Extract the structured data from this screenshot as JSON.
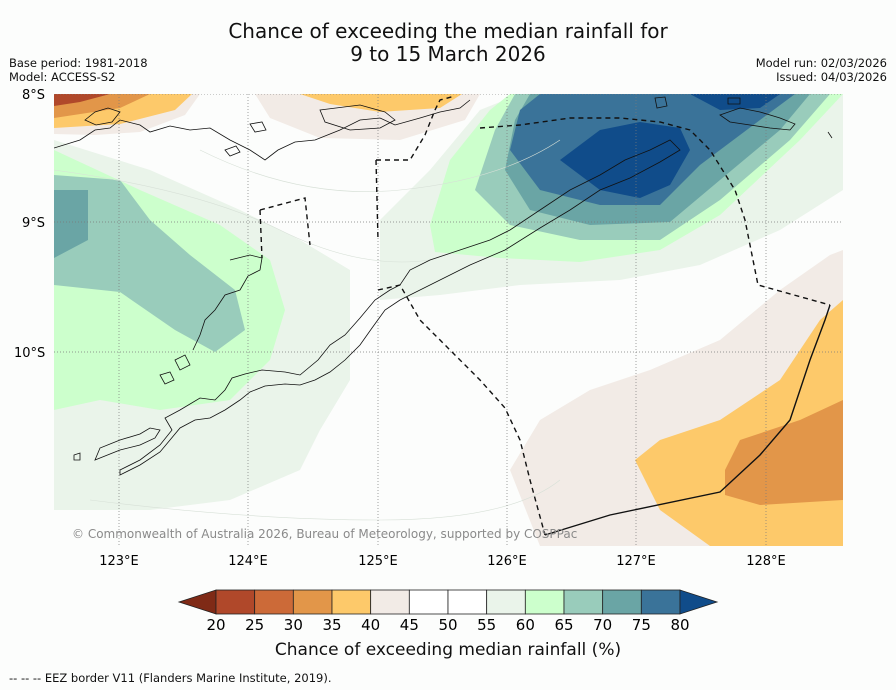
{
  "title": {
    "line1": "Chance of exceeding the median rainfall for",
    "line2": "9 to 15 March 2026"
  },
  "meta_left": {
    "base_period": "Base period: 1981-2018",
    "model": "Model: ACCESS-S2"
  },
  "meta_right": {
    "model_run": "Model run: 02/03/2026",
    "issued": "Issued: 04/03/2026"
  },
  "latitude_labels": [
    "8°S",
    "9°S",
    "10°S"
  ],
  "longitude_labels": [
    "123°E",
    "124°E",
    "125°E",
    "126°E",
    "127°E",
    "128°E"
  ],
  "copyright": "© Commonwealth of Australia 2026, Bureau of Meteorology, supported by COSPPac",
  "colorbar": {
    "label": "Chance of exceeding median rainfall (%)",
    "ticks": [
      "20",
      "25",
      "30",
      "35",
      "40",
      "45",
      "50",
      "55",
      "60",
      "65",
      "70",
      "75",
      "80"
    ],
    "colors": [
      "#7f2a16",
      "#b0482a",
      "#cc6a38",
      "#e29649",
      "#fdc96a",
      "#f2ebe6",
      "#ffffff",
      "#ffffff",
      "#eaf4ea",
      "#ccffcc",
      "#99ccbb",
      "#6aa5a5",
      "#3a7399",
      "#104c8a"
    ]
  },
  "footer": "--  --  -- EEZ border V11 (Flanders Marine Institute, 2019)."
}
